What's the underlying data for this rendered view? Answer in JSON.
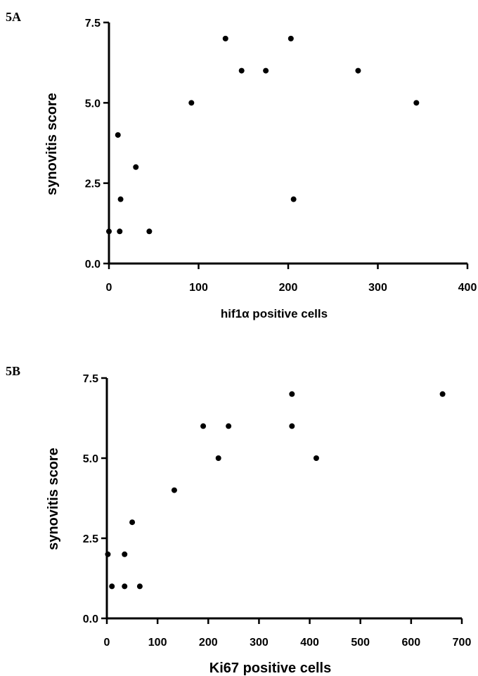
{
  "colors": {
    "axis": "#000000",
    "points": "#000000",
    "background": "#ffffff"
  },
  "chart_data": [
    {
      "panel_label": "5A",
      "type": "scatter",
      "xlabel": "hif1α positive cells",
      "ylabel": "synovitis score",
      "xlim": [
        0,
        400
      ],
      "ylim": [
        0,
        7.5
      ],
      "x_ticks": [
        0,
        100,
        200,
        300,
        400
      ],
      "x_tick_labels": [
        "0",
        "100",
        "200",
        "300",
        "400"
      ],
      "y_ticks": [
        0,
        2.5,
        5,
        7.5
      ],
      "y_tick_labels": [
        "0.0",
        "2.5",
        "5.0",
        "7.5"
      ],
      "grid": false,
      "points": [
        {
          "x": 0,
          "y": 1
        },
        {
          "x": 10,
          "y": 4
        },
        {
          "x": 12,
          "y": 1
        },
        {
          "x": 13,
          "y": 2
        },
        {
          "x": 30,
          "y": 3
        },
        {
          "x": 45,
          "y": 1
        },
        {
          "x": 92,
          "y": 5
        },
        {
          "x": 130,
          "y": 7
        },
        {
          "x": 148,
          "y": 6
        },
        {
          "x": 175,
          "y": 6
        },
        {
          "x": 203,
          "y": 7
        },
        {
          "x": 206,
          "y": 2
        },
        {
          "x": 278,
          "y": 6
        },
        {
          "x": 343,
          "y": 5
        }
      ]
    },
    {
      "panel_label": "5B",
      "type": "scatter",
      "xlabel": "Ki67 positive cells",
      "ylabel": "synovitis score",
      "xlim": [
        0,
        700
      ],
      "ylim": [
        0,
        7.5
      ],
      "x_ticks": [
        0,
        100,
        200,
        300,
        400,
        500,
        600,
        700
      ],
      "x_tick_labels": [
        "0",
        "100",
        "200",
        "300",
        "400",
        "500",
        "600",
        "700"
      ],
      "y_ticks": [
        0,
        2.5,
        5,
        7.5
      ],
      "y_tick_labels": [
        "0.0",
        "2.5",
        "5.0",
        "7.5"
      ],
      "grid": false,
      "points": [
        {
          "x": 2,
          "y": 2
        },
        {
          "x": 10,
          "y": 1
        },
        {
          "x": 35,
          "y": 1
        },
        {
          "x": 35,
          "y": 2
        },
        {
          "x": 50,
          "y": 3
        },
        {
          "x": 65,
          "y": 1
        },
        {
          "x": 133,
          "y": 4
        },
        {
          "x": 190,
          "y": 6
        },
        {
          "x": 220,
          "y": 5
        },
        {
          "x": 240,
          "y": 6
        },
        {
          "x": 365,
          "y": 7
        },
        {
          "x": 365,
          "y": 6
        },
        {
          "x": 413,
          "y": 5
        },
        {
          "x": 662,
          "y": 7
        }
      ]
    }
  ]
}
